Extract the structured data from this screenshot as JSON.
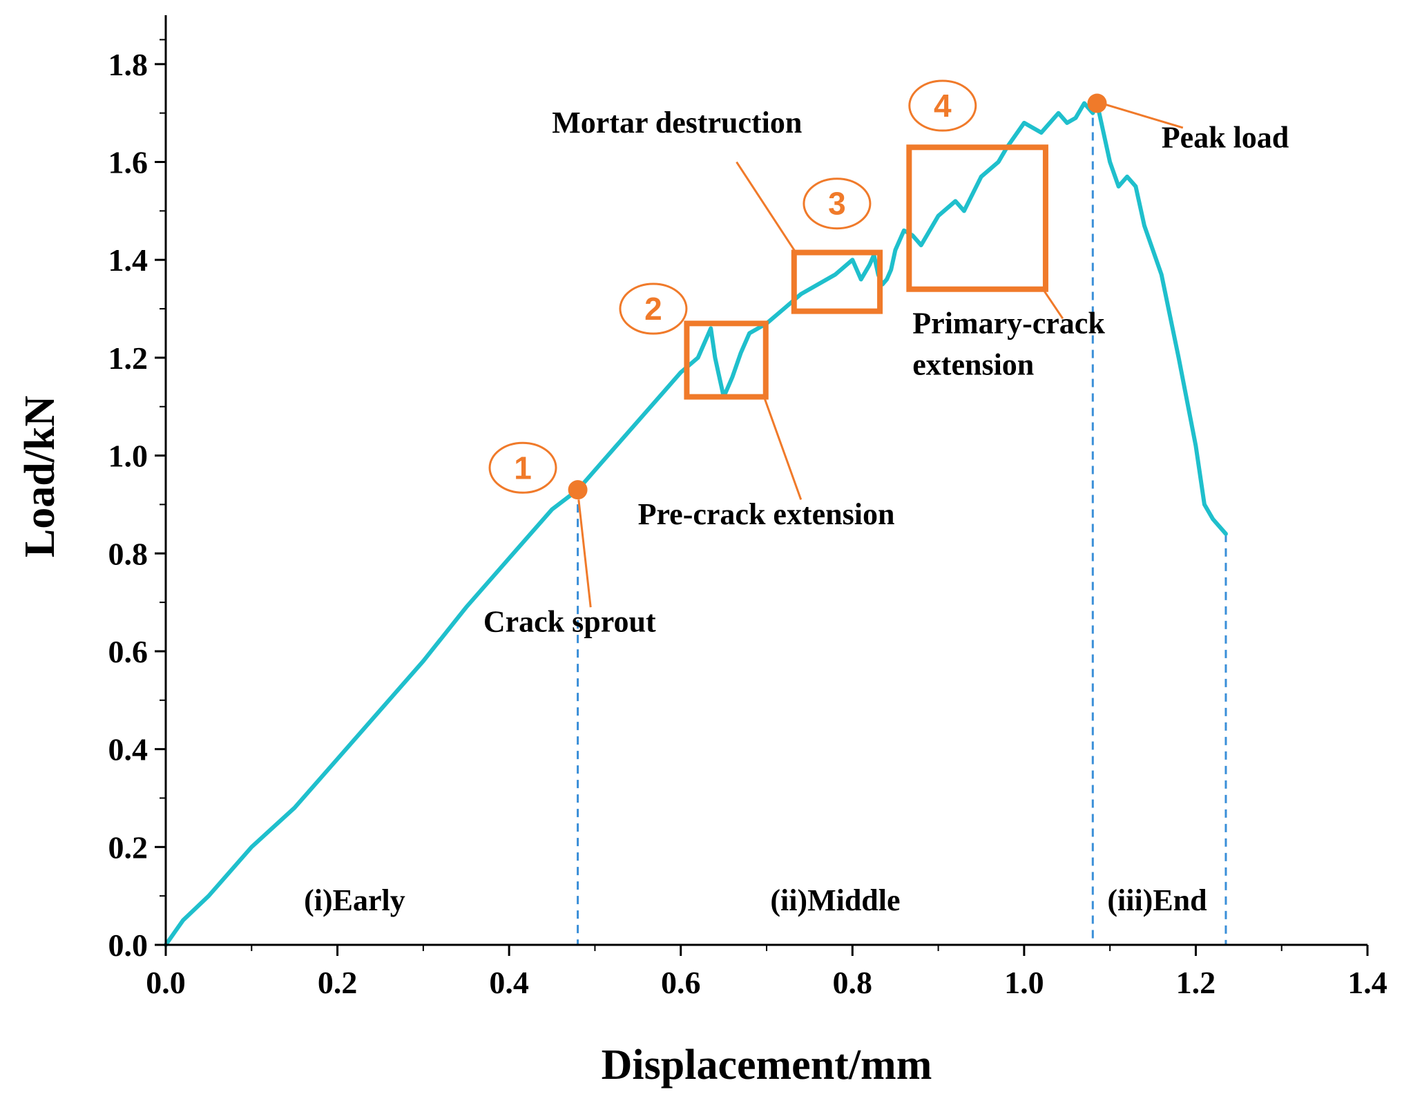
{
  "colors": {
    "curve": "#1FBFCC",
    "accent": "#F07A2A",
    "guide": "#3A8FD8",
    "axis": "#000000"
  },
  "chart_data": {
    "type": "line",
    "xlabel": "Displacement/mm",
    "ylabel": "Load/kN",
    "xlim": [
      0.0,
      1.4
    ],
    "ylim": [
      0.0,
      1.9
    ],
    "xticks": [
      0.0,
      0.2,
      0.4,
      0.6,
      0.8,
      1.0,
      1.2,
      1.4
    ],
    "xtick_labels": [
      "0.0",
      "0.2",
      "0.4",
      "0.6",
      "0.8",
      "1.0",
      "1.2",
      "1.4"
    ],
    "yticks": [
      0.0,
      0.2,
      0.4,
      0.6,
      0.8,
      1.0,
      1.2,
      1.4,
      1.6,
      1.8
    ],
    "ytick_labels": [
      "0.0",
      "0.2",
      "0.4",
      "0.6",
      "0.8",
      "1.0",
      "1.2",
      "1.4",
      "1.6",
      "1.8"
    ],
    "series": [
      {
        "name": "Load-displacement curve",
        "x": [
          0.0,
          0.02,
          0.05,
          0.1,
          0.15,
          0.2,
          0.25,
          0.3,
          0.35,
          0.4,
          0.45,
          0.48,
          0.5,
          0.53,
          0.56,
          0.58,
          0.6,
          0.62,
          0.635,
          0.64,
          0.645,
          0.65,
          0.655,
          0.66,
          0.67,
          0.68,
          0.7,
          0.72,
          0.74,
          0.76,
          0.78,
          0.8,
          0.81,
          0.82,
          0.825,
          0.83,
          0.835,
          0.84,
          0.845,
          0.85,
          0.86,
          0.87,
          0.88,
          0.9,
          0.92,
          0.93,
          0.95,
          0.97,
          0.98,
          1.0,
          1.02,
          1.04,
          1.05,
          1.06,
          1.07,
          1.08,
          1.085,
          1.09,
          1.1,
          1.11,
          1.12,
          1.13,
          1.14,
          1.16,
          1.18,
          1.2,
          1.21,
          1.22,
          1.235
        ],
        "y": [
          0.0,
          0.05,
          0.1,
          0.2,
          0.28,
          0.38,
          0.48,
          0.58,
          0.69,
          0.79,
          0.89,
          0.93,
          0.97,
          1.03,
          1.09,
          1.13,
          1.17,
          1.2,
          1.26,
          1.2,
          1.16,
          1.12,
          1.14,
          1.16,
          1.21,
          1.25,
          1.27,
          1.3,
          1.33,
          1.35,
          1.37,
          1.4,
          1.36,
          1.39,
          1.41,
          1.37,
          1.35,
          1.36,
          1.38,
          1.42,
          1.46,
          1.45,
          1.43,
          1.49,
          1.52,
          1.5,
          1.57,
          1.6,
          1.63,
          1.68,
          1.66,
          1.7,
          1.68,
          1.69,
          1.72,
          1.7,
          1.72,
          1.68,
          1.6,
          1.55,
          1.57,
          1.55,
          1.47,
          1.37,
          1.2,
          1.02,
          0.9,
          0.87,
          0.84
        ]
      }
    ],
    "points": [
      {
        "name": "crack-sprout-point",
        "x": 0.48,
        "y": 0.93
      },
      {
        "name": "peak-load-point",
        "x": 1.085,
        "y": 1.72
      }
    ],
    "guide_lines": [
      {
        "x": 0.48,
        "y_top": 0.93
      },
      {
        "x": 1.08,
        "y_top": 1.72
      },
      {
        "x": 1.235,
        "y_top": 0.84
      }
    ],
    "boxes": [
      {
        "x0": 0.607,
        "x1": 0.699,
        "y0": 1.12,
        "y1": 1.27
      },
      {
        "x0": 0.732,
        "x1": 0.832,
        "y0": 1.295,
        "y1": 1.415
      },
      {
        "x0": 0.866,
        "x1": 1.025,
        "y0": 1.34,
        "y1": 1.63
      }
    ],
    "markers": [
      {
        "label": "1",
        "x": 0.416,
        "y": 0.975
      },
      {
        "label": "2",
        "x": 0.568,
        "y": 1.3
      },
      {
        "label": "3",
        "x": 0.782,
        "y": 1.515
      },
      {
        "label": "4",
        "x": 0.905,
        "y": 1.715
      }
    ],
    "annotations": [
      {
        "name": "crack-sprout-label",
        "lines": [
          "Crack  sprout"
        ],
        "x": 0.37,
        "y": 0.64,
        "pointer_from": [
          0.495,
          0.69
        ],
        "pointer_to": [
          0.481,
          0.91
        ]
      },
      {
        "name": "pre-crack-label",
        "lines": [
          "Pre-crack  extension"
        ],
        "x": 0.55,
        "y": 0.86,
        "pointer_from": [
          0.74,
          0.91
        ],
        "pointer_to": [
          0.697,
          1.12
        ]
      },
      {
        "name": "mortar-destruction-label",
        "lines": [
          "Mortar destruction"
        ],
        "x": 0.45,
        "y": 1.66,
        "pointer_from": [
          0.665,
          1.6
        ],
        "pointer_to": [
          0.734,
          1.415
        ]
      },
      {
        "name": "primary-crack-label",
        "lines": [
          "Primary-crack",
          "extension"
        ],
        "x": 0.87,
        "y": 1.25,
        "pointer_from": [
          1.045,
          1.28
        ],
        "pointer_to": [
          1.022,
          1.34
        ]
      },
      {
        "name": "peak-load-label",
        "lines": [
          "Peak load"
        ],
        "x": 1.16,
        "y": 1.63,
        "pointer_from": [
          1.185,
          1.67
        ],
        "pointer_to": [
          1.09,
          1.72
        ]
      }
    ],
    "stages": [
      {
        "label": "(i)Early",
        "x": 0.22
      },
      {
        "label": "(ii)Middle",
        "x": 0.78
      },
      {
        "label": "(iii)End",
        "x": 1.155
      }
    ]
  }
}
